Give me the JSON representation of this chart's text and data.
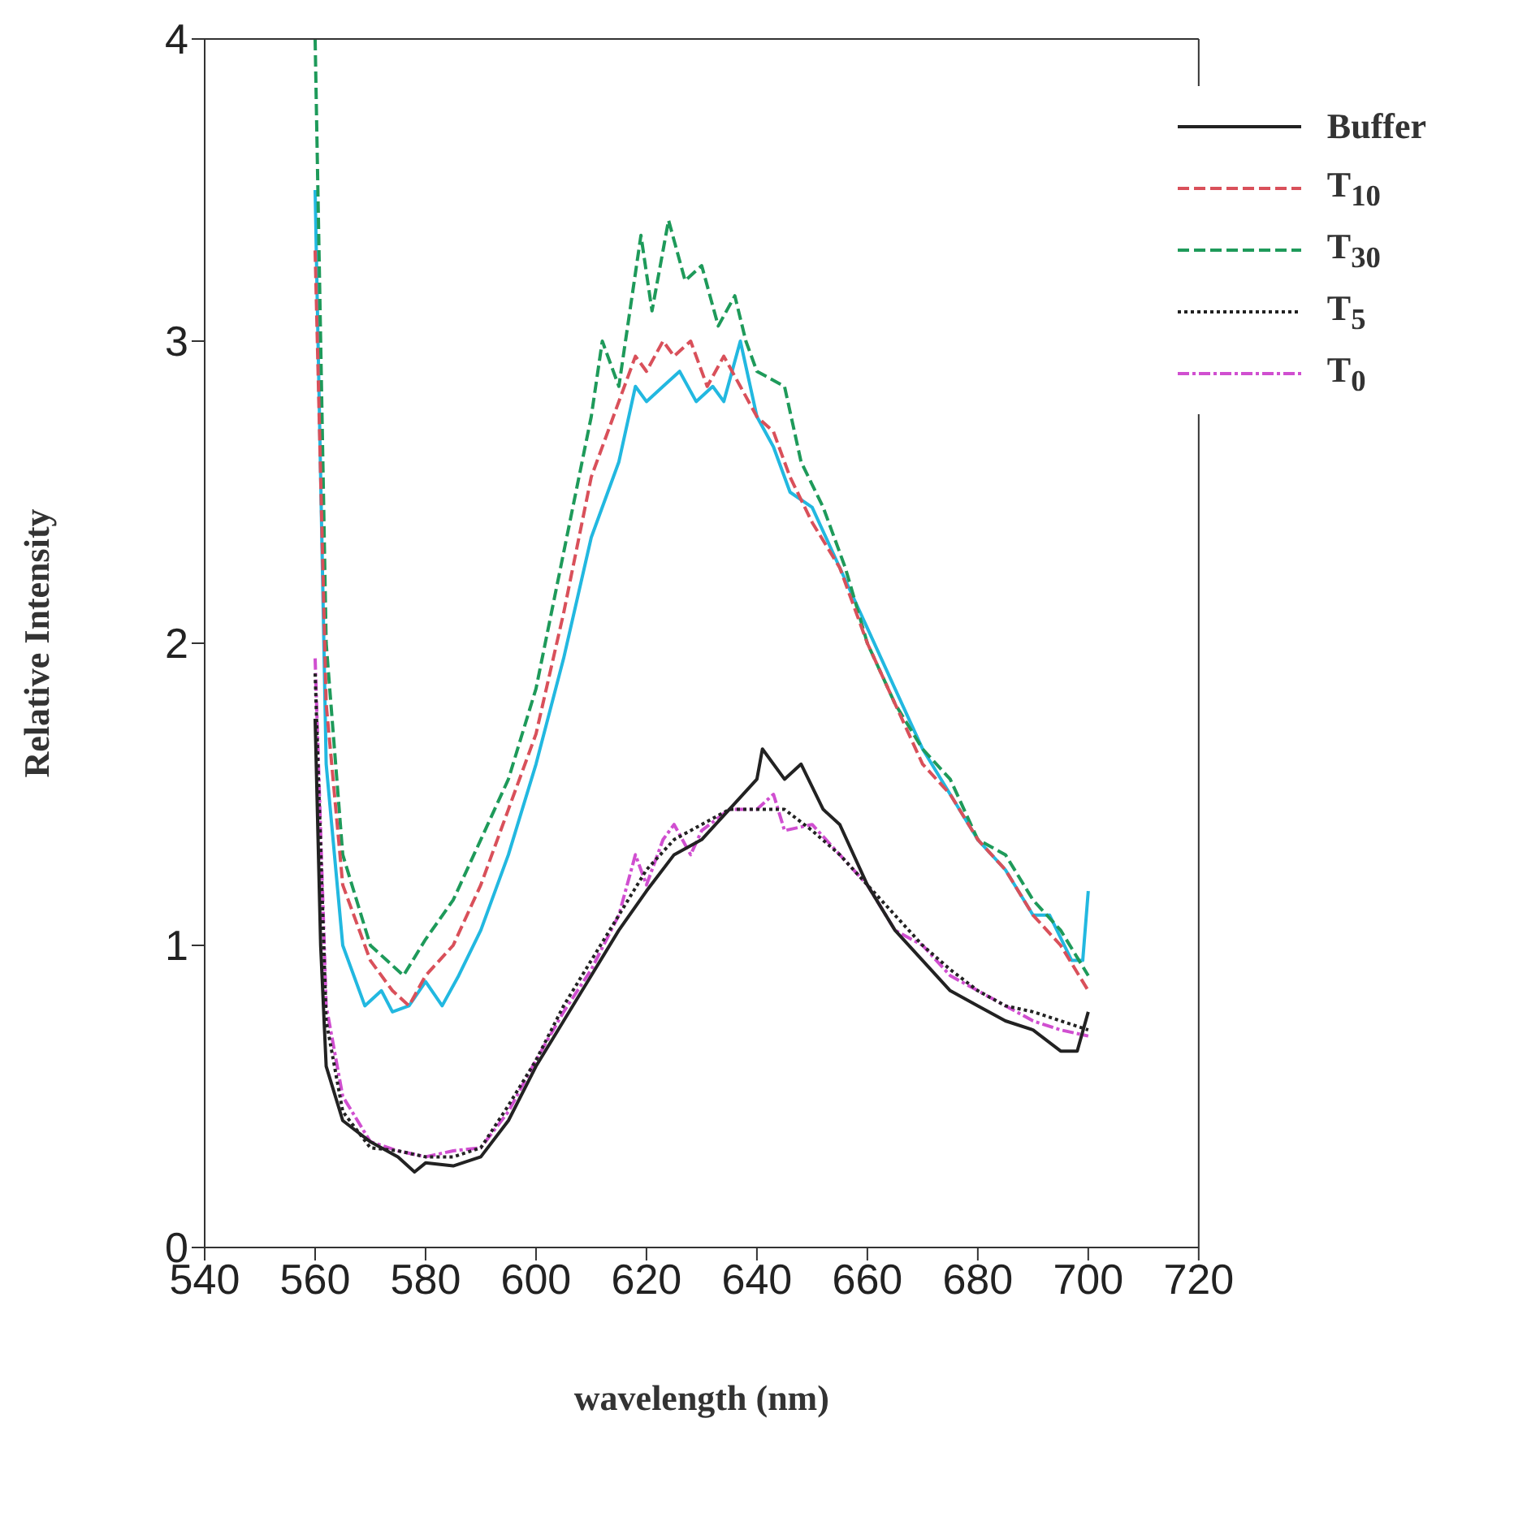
{
  "chart_data": {
    "type": "line",
    "xlabel": "wavelength (nm)",
    "ylabel": "Relative Intensity",
    "xlim": [
      540,
      720
    ],
    "xticks": [
      540,
      560,
      580,
      600,
      620,
      640,
      660,
      680,
      700,
      720
    ],
    "ylim": [
      0,
      4
    ],
    "yticks": [
      0,
      1,
      2,
      3,
      4
    ],
    "legend": "top right",
    "series": [
      {
        "name": "Buffer",
        "color": "#222222",
        "line_style": "solid",
        "x": [
          560,
          561,
          562,
          565,
          570,
          575,
          578,
          580,
          585,
          590,
          595,
          600,
          605,
          610,
          615,
          620,
          625,
          630,
          635,
          640,
          641,
          645,
          648,
          652,
          655,
          660,
          665,
          670,
          675,
          680,
          685,
          690,
          695,
          698,
          700
        ],
        "values": [
          1.75,
          1.0,
          0.6,
          0.42,
          0.35,
          0.3,
          0.25,
          0.28,
          0.27,
          0.3,
          0.42,
          0.6,
          0.75,
          0.9,
          1.05,
          1.18,
          1.3,
          1.35,
          1.45,
          1.55,
          1.65,
          1.55,
          1.6,
          1.45,
          1.4,
          1.2,
          1.05,
          0.95,
          0.85,
          0.8,
          0.75,
          0.72,
          0.65,
          0.65,
          0.78
        ]
      },
      {
        "name": "T$_{10}$",
        "color": "#d9505a",
        "line_style": "dashed",
        "x": [
          560,
          562,
          565,
          570,
          574,
          577,
          580,
          585,
          590,
          595,
          600,
          605,
          610,
          615,
          618,
          620,
          623,
          625,
          628,
          631,
          634,
          637,
          640,
          643,
          646,
          650,
          655,
          660,
          665,
          670,
          675,
          680,
          685,
          690,
          695,
          700
        ],
        "values": [
          3.3,
          1.8,
          1.2,
          0.95,
          0.85,
          0.8,
          0.9,
          1.0,
          1.2,
          1.45,
          1.7,
          2.1,
          2.55,
          2.8,
          2.95,
          2.9,
          3.0,
          2.95,
          3.0,
          2.85,
          2.95,
          2.85,
          2.75,
          2.7,
          2.55,
          2.4,
          2.25,
          2.0,
          1.8,
          1.6,
          1.5,
          1.35,
          1.25,
          1.1,
          1.0,
          0.85
        ]
      },
      {
        "name": "T$_{30}$",
        "color": "#1e9a5a",
        "line_style": "dashed",
        "x": [
          560,
          562,
          565,
          570,
          573,
          576,
          580,
          585,
          590,
          595,
          600,
          605,
          610,
          612,
          615,
          619,
          621,
          624,
          627,
          630,
          633,
          636,
          638,
          640,
          645,
          648,
          652,
          656,
          660,
          665,
          670,
          675,
          680,
          685,
          690,
          695,
          700
        ],
        "values": [
          4.0,
          2.0,
          1.3,
          1.0,
          0.95,
          0.9,
          1.02,
          1.15,
          1.35,
          1.55,
          1.85,
          2.3,
          2.75,
          3.0,
          2.85,
          3.35,
          3.1,
          3.4,
          3.2,
          3.25,
          3.05,
          3.15,
          3.0,
          2.9,
          2.85,
          2.6,
          2.45,
          2.25,
          2.0,
          1.8,
          1.65,
          1.55,
          1.35,
          1.3,
          1.15,
          1.05,
          0.9
        ]
      },
      {
        "name": "T$_{5}$",
        "color": "#222222",
        "line_style": "dotted",
        "x": [
          560,
          562,
          565,
          570,
          575,
          580,
          585,
          590,
          595,
          600,
          605,
          610,
          615,
          620,
          625,
          630,
          635,
          640,
          645,
          650,
          655,
          660,
          665,
          670,
          675,
          680,
          685,
          690,
          695,
          700
        ],
        "values": [
          1.9,
          0.75,
          0.45,
          0.33,
          0.32,
          0.3,
          0.3,
          0.33,
          0.47,
          0.62,
          0.8,
          0.95,
          1.1,
          1.25,
          1.35,
          1.4,
          1.45,
          1.45,
          1.45,
          1.38,
          1.3,
          1.2,
          1.1,
          1.0,
          0.92,
          0.85,
          0.8,
          0.78,
          0.75,
          0.72
        ]
      },
      {
        "name": "T$_{0}$",
        "color": "#d04fd0",
        "line_style": "dashdot",
        "x": [
          560,
          562,
          565,
          570,
          575,
          580,
          585,
          590,
          595,
          600,
          605,
          610,
          615,
          618,
          620,
          623,
          625,
          628,
          630,
          635,
          640,
          643,
          645,
          650,
          655,
          660,
          665,
          670,
          675,
          680,
          685,
          690,
          695,
          700
        ],
        "values": [
          1.95,
          0.8,
          0.5,
          0.35,
          0.32,
          0.3,
          0.32,
          0.33,
          0.45,
          0.62,
          0.78,
          0.92,
          1.1,
          1.3,
          1.2,
          1.35,
          1.4,
          1.3,
          1.38,
          1.45,
          1.45,
          1.5,
          1.38,
          1.4,
          1.3,
          1.2,
          1.05,
          1.0,
          0.9,
          0.85,
          0.8,
          0.75,
          0.72,
          0.7
        ]
      },
      {
        "color": "#22b8e0",
        "line_style": "solid",
        "x": [
          560,
          562,
          565,
          569,
          572,
          574,
          577,
          580,
          583,
          586,
          590,
          595,
          600,
          605,
          610,
          615,
          618,
          620,
          623,
          626,
          629,
          632,
          634,
          637,
          640,
          643,
          646,
          650,
          655,
          660,
          665,
          670,
          675,
          680,
          685,
          690,
          693,
          697,
          699,
          700
        ],
        "values": [
          3.5,
          1.6,
          1.0,
          0.8,
          0.85,
          0.78,
          0.8,
          0.88,
          0.8,
          0.9,
          1.05,
          1.3,
          1.6,
          1.95,
          2.35,
          2.6,
          2.85,
          2.8,
          2.85,
          2.9,
          2.8,
          2.85,
          2.8,
          3.0,
          2.75,
          2.65,
          2.5,
          2.45,
          2.25,
          2.05,
          1.85,
          1.65,
          1.5,
          1.35,
          1.25,
          1.1,
          1.1,
          0.95,
          0.95,
          1.18
        ]
      }
    ]
  }
}
